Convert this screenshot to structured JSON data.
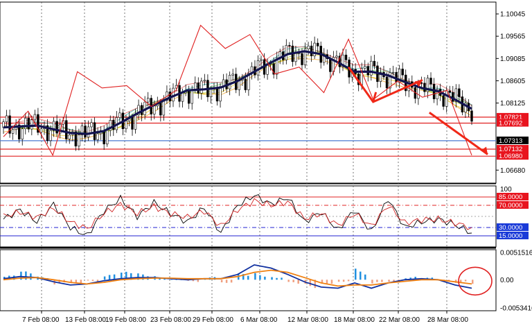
{
  "chart_data": [
    {
      "type": "candlestick",
      "panel": "price",
      "ylim": [
        1.064,
        1.103
      ],
      "y_ticks": [
        "1.10045",
        "1.09565",
        "1.09085",
        "1.08605",
        "1.08125",
        "1.06680"
      ],
      "x_labels": [
        "7 Feb 08:00",
        "13 Feb 08:00",
        "19 Feb 08:00",
        "23 Feb 08:00",
        "29 Feb 08:00",
        "6 Mar 08:00",
        "12 Mar 08:00",
        "18 Mar 08:00",
        "22 Mar 08:00",
        "28 Mar 08:00"
      ],
      "horizontal_levels": [
        {
          "label": "1.07821",
          "value": 1.07821,
          "color": "#e02020"
        },
        {
          "label": "1.07692",
          "value": 1.07692,
          "color": "#e02020"
        },
        {
          "label": "1.07313",
          "value": 1.07313,
          "color": "#4a78d0"
        },
        {
          "label": "1.07132",
          "value": 1.07132,
          "color": "#e02020"
        },
        {
          "label": "1.06980",
          "value": 1.0698,
          "color": "#e02020"
        }
      ],
      "current_price": "1.07313",
      "zigzag": [
        1.074,
        1.0795,
        1.07,
        1.088,
        1.0845,
        1.085,
        1.0805,
        1.084,
        1.098,
        1.093,
        1.096,
        1.0875,
        1.089,
        1.0835,
        1.095,
        1.082,
        1.086,
        1.0825,
        1.084,
        1.07
      ],
      "baseline_ma": [
        1.076,
        1.0762,
        1.0764,
        1.0756,
        1.0748,
        1.0746,
        1.0752,
        1.077,
        1.079,
        1.0808,
        1.0825,
        1.084,
        1.0842,
        1.0846,
        1.086,
        1.088,
        1.09,
        1.0918,
        1.0924,
        1.0918,
        1.09,
        1.088,
        1.088,
        1.0872,
        1.0858,
        1.0845,
        1.0838,
        1.082,
        1.08
      ]
    },
    {
      "type": "line",
      "panel": "stochastic",
      "ylim": [
        0,
        100
      ],
      "y_ticks": [
        "100"
      ],
      "levels": [
        {
          "label": "85.0000",
          "value": 85,
          "color": "#e02020"
        },
        {
          "label": "70.0000",
          "value": 70,
          "color": "#e02020"
        },
        {
          "label": "30.0000",
          "value": 30,
          "color": "#2020d0"
        },
        {
          "label": "15.0000",
          "value": 15,
          "color": "#2020d0"
        }
      ],
      "series": [
        {
          "color": "#000000",
          "values": [
            45,
            62,
            40,
            72,
            30,
            15,
            60,
            82,
            50,
            75,
            55,
            40,
            66,
            20,
            70,
            88,
            72,
            84,
            40,
            58,
            25,
            62,
            22,
            82,
            30,
            40,
            45,
            35,
            20
          ]
        },
        {
          "color": "#d02020",
          "values": [
            50,
            58,
            48,
            65,
            40,
            28,
            55,
            72,
            55,
            68,
            55,
            48,
            60,
            32,
            62,
            78,
            70,
            76,
            46,
            55,
            34,
            55,
            32,
            70,
            38,
            44,
            45,
            38,
            30
          ]
        }
      ]
    },
    {
      "type": "bar",
      "panel": "macd",
      "y_ticks": [
        "0.0051516",
        "0.00",
        "-0.0053416"
      ],
      "histogram": [
        0.0008,
        0.0016,
        0.0006,
        -0.0012,
        -0.0014,
        -0.0004,
        0.001,
        0.0015,
        0.0012,
        0.0008,
        0.0,
        -0.0005,
        0.0005,
        -0.0006,
        0.0012,
        0.0014,
        0.0008,
        -0.001,
        -0.0016,
        -0.0008,
        -0.0004,
        0.0022,
        -0.001,
        -0.0008,
        0.0006,
        0.0004,
        -0.0002,
        -0.0006,
        -0.001
      ],
      "series": [
        {
          "color": "#1030a0",
          "values": [
            0.0002,
            0.0006,
            0.0004,
            -0.0004,
            -0.001,
            -0.0008,
            -0.0002,
            0.0002,
            0.0004,
            0.0004,
            0.0002,
            0.0,
            0.0002,
            0.0002,
            0.001,
            0.0028,
            0.0022,
            0.001,
            -0.0004,
            -0.0014,
            -0.0016,
            -0.0006,
            -0.0016,
            -0.0006,
            0.0,
            0.0002,
            0.0,
            -0.001,
            -0.0016
          ]
        },
        {
          "color": "#f08010",
          "values": [
            0.0,
            0.0003,
            0.0004,
            0.0,
            -0.0005,
            -0.0008,
            -0.0005,
            0.0,
            0.0002,
            0.0003,
            0.0003,
            0.0002,
            0.0002,
            0.0002,
            0.0006,
            0.0014,
            0.0018,
            0.0014,
            0.0004,
            -0.0006,
            -0.0012,
            -0.001,
            -0.001,
            -0.0006,
            -0.0003,
            0.0,
            0.0,
            -0.0004,
            -0.0008
          ]
        }
      ]
    }
  ]
}
